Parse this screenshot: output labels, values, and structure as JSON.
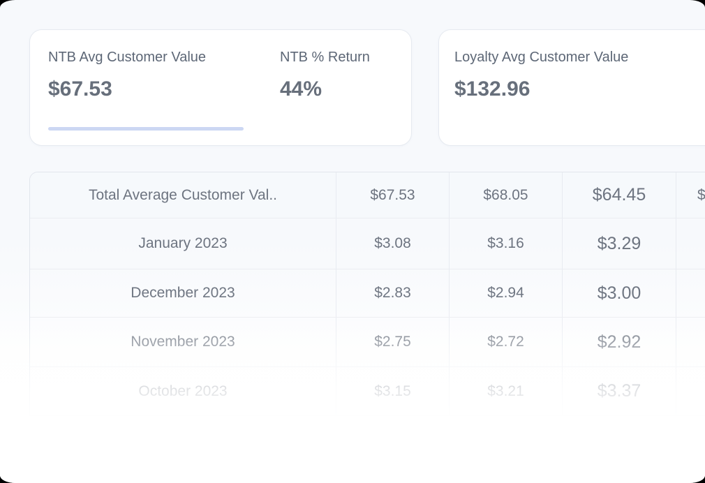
{
  "colors": {
    "corner_background": "#000000",
    "page_background": "#f7f9fc",
    "card_background": "#ffffff",
    "card_border": "#e6eaf0",
    "accent_underline": "#ccd7f3",
    "table_header_background": "#f6f9fc",
    "label_text": "#5d6776",
    "value_text": "#676f7b"
  },
  "stat_cards": [
    {
      "name": "ntb",
      "stats": [
        {
          "label": "NTB Avg Customer Value",
          "value": "$67.53"
        },
        {
          "label": "NTB % Return",
          "value": "44%"
        }
      ]
    },
    {
      "name": "loyalty",
      "stats": [
        {
          "label": "Loyalty Avg Customer Value",
          "value": "$132.96"
        }
      ]
    }
  ],
  "table": {
    "header": {
      "label": "Total Average Customer Val..",
      "values": [
        "$67.53",
        "$68.05",
        "$64.45",
        "$"
      ]
    },
    "rows": [
      {
        "label": "January 2023",
        "values": [
          "$3.08",
          "$3.16",
          "$3.29",
          ""
        ]
      },
      {
        "label": "December 2023",
        "values": [
          "$2.83",
          "$2.94",
          "$3.00",
          ""
        ]
      },
      {
        "label": "November 2023",
        "values": [
          "$2.75",
          "$2.72",
          "$2.92",
          ""
        ]
      },
      {
        "label": "October 2023",
        "values": [
          "$3.15",
          "$3.21",
          "$3.37",
          ""
        ]
      }
    ]
  }
}
